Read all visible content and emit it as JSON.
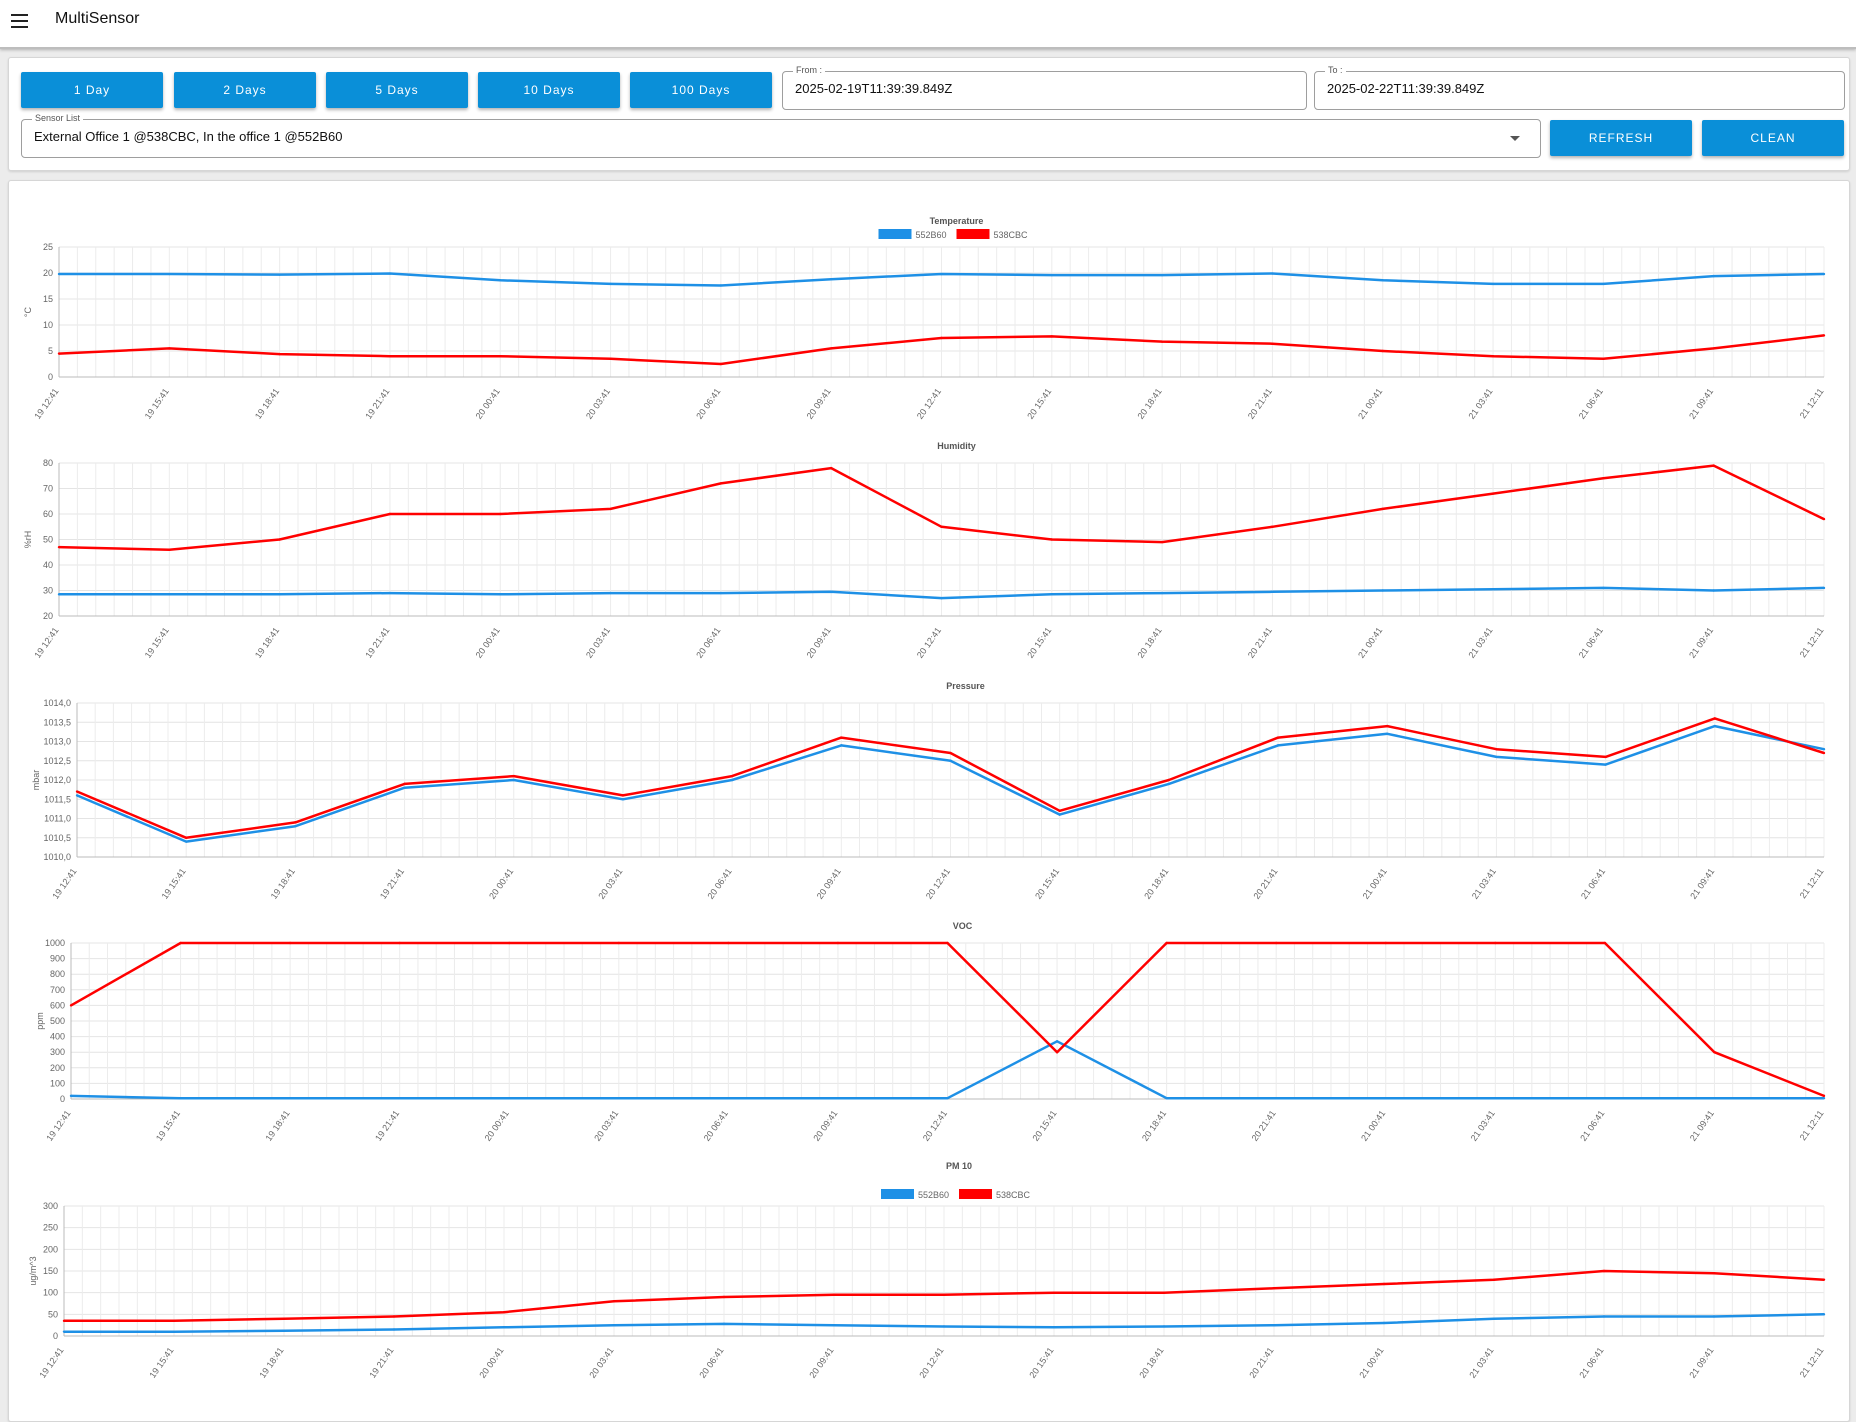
{
  "app": {
    "title": "MultiSensor"
  },
  "toolbar": {
    "range_buttons": [
      "1 Day",
      "2 Days",
      "5 Days",
      "10 Days",
      "100 Days"
    ],
    "from": {
      "label": "From :",
      "value": "2025-02-19T11:39:39.849Z"
    },
    "to": {
      "label": "To :",
      "value": "2025-02-22T11:39:39.849Z"
    },
    "sensor_list": {
      "label": "Sensor List",
      "value": "External Office 1 @538CBC, In the office 1 @552B60"
    },
    "refresh_label": "REFRESH",
    "clean_label": "CLEAN"
  },
  "colors": {
    "series_552B60": "#1e90e6",
    "series_538CBC": "#ff0000",
    "button": "#0a8fd8"
  },
  "chart_data": [
    {
      "type": "line",
      "title": "Temperature",
      "ylabel": "°C",
      "ylim": [
        0,
        25
      ],
      "yticks": [
        "0",
        "5",
        "10",
        "15",
        "20",
        "25"
      ],
      "legend": {
        "position": "top-center",
        "entries": [
          "552B60",
          "538CBC"
        ]
      },
      "grid": true,
      "x": [
        "19 12:41",
        "19 15:41",
        "19 18:41",
        "19 21:41",
        "20 00:41",
        "20 03:41",
        "20 06:41",
        "20 09:41",
        "20 12:41",
        "20 15:41",
        "20 18:41",
        "20 21:41",
        "21 00:41",
        "21 03:41",
        "21 06:41",
        "21 09:41",
        "21 12:11"
      ],
      "series": [
        {
          "name": "552B60",
          "values": [
            19.8,
            19.8,
            19.7,
            19.9,
            18.6,
            17.9,
            17.6,
            18.8,
            19.8,
            19.6,
            19.6,
            19.9,
            18.6,
            17.9,
            17.9,
            19.4,
            19.8
          ]
        },
        {
          "name": "538CBC",
          "values": [
            4.5,
            5.5,
            4.4,
            4.0,
            4.0,
            3.5,
            2.5,
            5.5,
            7.5,
            7.8,
            6.8,
            6.4,
            5.0,
            4.0,
            3.5,
            5.5,
            8.0
          ]
        }
      ]
    },
    {
      "type": "line",
      "title": "Humidity",
      "ylabel": "%rH",
      "ylim": [
        20,
        80
      ],
      "yticks": [
        "20",
        "30",
        "40",
        "50",
        "60",
        "70",
        "80"
      ],
      "grid": true,
      "x": [
        "19 12:41",
        "19 15:41",
        "19 18:41",
        "19 21:41",
        "20 00:41",
        "20 03:41",
        "20 06:41",
        "20 09:41",
        "20 12:41",
        "20 15:41",
        "20 18:41",
        "20 21:41",
        "21 00:41",
        "21 03:41",
        "21 06:41",
        "21 09:41",
        "21 12:11"
      ],
      "series": [
        {
          "name": "552B60",
          "values": [
            28.5,
            28.5,
            28.5,
            29,
            28.5,
            29,
            29,
            29.5,
            27,
            28.5,
            29,
            29.5,
            30,
            30.5,
            31,
            30,
            31
          ]
        },
        {
          "name": "538CBC",
          "values": [
            47,
            46,
            50,
            60,
            60,
            62,
            72,
            78,
            55,
            50,
            49,
            55,
            62,
            68,
            74,
            79,
            58
          ]
        }
      ]
    },
    {
      "type": "line",
      "title": "Pressure",
      "ylabel": "mbar",
      "ylim": [
        1010.0,
        1014.0
      ],
      "yticks": [
        "1010,0",
        "1010,5",
        "1011,0",
        "1011,5",
        "1012,0",
        "1012,5",
        "1013,0",
        "1013,5",
        "1014,0"
      ],
      "grid": true,
      "x": [
        "19 12:41",
        "19 15:41",
        "19 18:41",
        "19 21:41",
        "20 00:41",
        "20 03:41",
        "20 06:41",
        "20 09:41",
        "20 12:41",
        "20 15:41",
        "20 18:41",
        "20 21:41",
        "21 00:41",
        "21 03:41",
        "21 06:41",
        "21 09:41",
        "21 12:11"
      ],
      "series": [
        {
          "name": "552B60",
          "values": [
            1011.6,
            1010.4,
            1010.8,
            1011.8,
            1012.0,
            1011.5,
            1012.0,
            1012.9,
            1012.5,
            1011.1,
            1011.9,
            1012.9,
            1013.2,
            1012.6,
            1012.4,
            1013.4,
            1012.8
          ]
        },
        {
          "name": "538CBC",
          "values": [
            1011.7,
            1010.5,
            1010.9,
            1011.9,
            1012.1,
            1011.6,
            1012.1,
            1013.1,
            1012.7,
            1011.2,
            1012.0,
            1013.1,
            1013.4,
            1012.8,
            1012.6,
            1013.6,
            1012.7
          ]
        }
      ]
    },
    {
      "type": "line",
      "title": "VOC",
      "ylabel": "ppm",
      "ylim": [
        0,
        1000
      ],
      "yticks": [
        "0",
        "100",
        "200",
        "300",
        "400",
        "500",
        "600",
        "700",
        "800",
        "900",
        "1000"
      ],
      "grid": true,
      "x": [
        "19 12:41",
        "19 15:41",
        "19 18:41",
        "19 21:41",
        "20 00:41",
        "20 03:41",
        "20 06:41",
        "20 09:41",
        "20 12:41",
        "20 15:41",
        "20 18:41",
        "20 21:41",
        "21 00:41",
        "21 03:41",
        "21 06:41",
        "21 09:41",
        "21 12:11"
      ],
      "series": [
        {
          "name": "552B60",
          "values": [
            20,
            5,
            5,
            5,
            5,
            5,
            5,
            5,
            5,
            370,
            5,
            5,
            5,
            5,
            5,
            5,
            5
          ]
        },
        {
          "name": "538CBC",
          "values": [
            600,
            1000,
            1000,
            1000,
            1000,
            1000,
            1000,
            1000,
            1000,
            300,
            1000,
            1000,
            1000,
            1000,
            1000,
            300,
            20
          ]
        }
      ]
    },
    {
      "type": "line",
      "title": "PM 10",
      "ylabel": "ug/m^3",
      "ylim": [
        0,
        300
      ],
      "yticks": [
        "0",
        "50",
        "100",
        "150",
        "200",
        "250",
        "300"
      ],
      "legend": {
        "position": "top-center",
        "entries": [
          "552B60",
          "538CBC"
        ]
      },
      "grid": true,
      "x": [
        "19 12:41",
        "19 15:41",
        "19 18:41",
        "19 21:41",
        "20 00:41",
        "20 03:41",
        "20 06:41",
        "20 09:41",
        "20 12:41",
        "20 15:41",
        "20 18:41",
        "20 21:41",
        "21 00:41",
        "21 03:41",
        "21 06:41",
        "21 09:41",
        "21 12:11"
      ],
      "series": [
        {
          "name": "552B60",
          "values": [
            10,
            10,
            12,
            15,
            20,
            25,
            28,
            25,
            22,
            20,
            22,
            25,
            30,
            40,
            45,
            45,
            50
          ]
        },
        {
          "name": "538CBC",
          "values": [
            35,
            35,
            40,
            45,
            55,
            80,
            90,
            95,
            95,
            100,
            100,
            110,
            120,
            130,
            150,
            145,
            130
          ]
        }
      ]
    }
  ]
}
